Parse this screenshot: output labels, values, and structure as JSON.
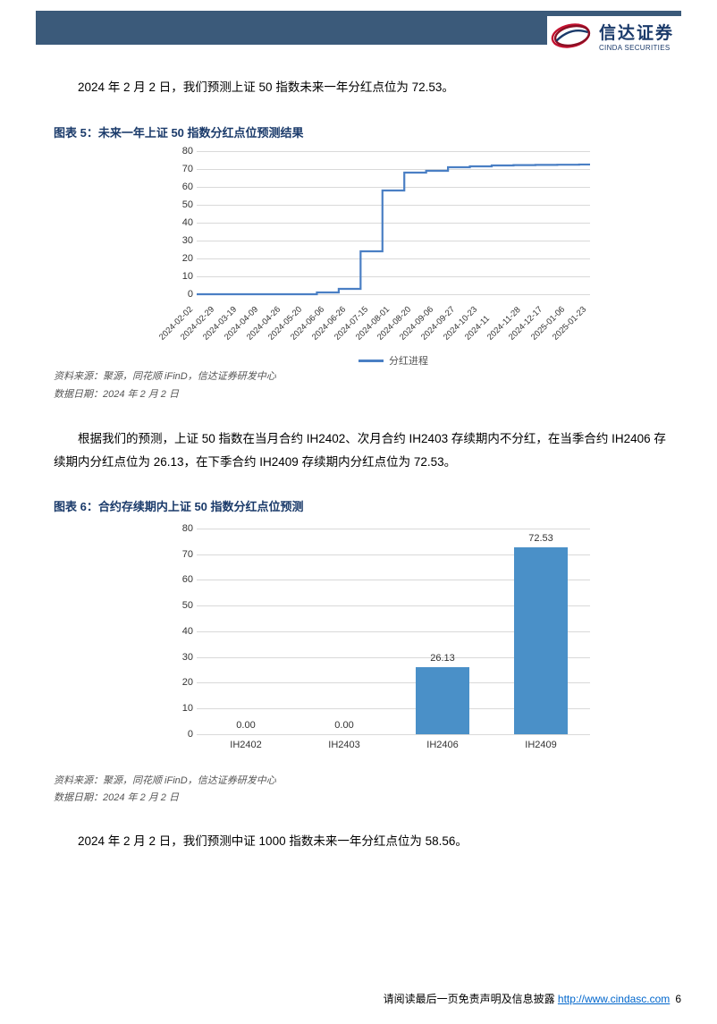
{
  "header": {
    "bar_color": "#3b5a7a",
    "logo_cn": "信达证券",
    "logo_en": "CINDA SECURITIES",
    "logo_swirl_colors": [
      "#c41230",
      "#8a0f24",
      "#1a3a6a"
    ]
  },
  "intro": "2024 年 2 月 2 日，我们预测上证 50 指数未来一年分红点位为 72.53。",
  "chart5": {
    "title": "图表 5：未来一年上证 50 指数分红点位预测结果",
    "title_color": "#1a3a6a",
    "type": "line",
    "line_color": "#4a7fc4",
    "legend_label": "分红进程",
    "ylim": [
      0,
      80
    ],
    "ytick_step": 10,
    "x_labels": [
      "2024-02-02",
      "2024-02-29",
      "2024-03-19",
      "2024-04-09",
      "2024-04-26",
      "2024-05-20",
      "2024-06-06",
      "2024-06-26",
      "2024-07-15",
      "2024-08-01",
      "2024-08-20",
      "2024-09-06",
      "2024-09-27",
      "2024-10-23",
      "2024-11",
      "2024-11-28",
      "2024-12-17",
      "2025-01-06",
      "2025-01-23"
    ],
    "values": [
      0,
      0,
      0,
      0,
      0,
      0,
      1,
      3,
      24,
      58,
      68,
      69,
      71,
      71.5,
      72,
      72.2,
      72.3,
      72.4,
      72.53
    ],
    "grid_color": "#d9d9d9",
    "source": "资料来源：聚源，同花顺 iFinD，信达证券研发中心",
    "date_note": "数据日期：2024 年 2 月 2 日"
  },
  "mid_text": "根据我们的预测，上证 50 指数在当月合约 IH2402、次月合约 IH2403 存续期内不分红，在当季合约 IH2406 存续期内分红点位为 26.13，在下季合约 IH2409 存续期内分红点位为 72.53。",
  "chart6": {
    "title": "图表 6：合约存续期内上证 50 指数分红点位预测",
    "title_color": "#1a3a6a",
    "type": "bar",
    "bar_color": "#4a90c8",
    "ylim": [
      0,
      80
    ],
    "ytick_step": 10,
    "categories": [
      "IH2402",
      "IH2403",
      "IH2406",
      "IH2409"
    ],
    "values": [
      0.0,
      0.0,
      26.13,
      72.53
    ],
    "value_labels": [
      "0.00",
      "0.00",
      "26.13",
      "72.53"
    ],
    "grid_color": "#d9d9d9",
    "source": "资料来源：聚源，同花顺 iFinD，信达证券研发中心",
    "date_note": "数据日期：2024 年 2 月 2 日"
  },
  "bottom_text": "2024 年 2 月 2 日，我们预测中证 1000 指数未来一年分红点位为 58.56。",
  "footer": {
    "prefix": "请阅读最后一页免责声明及信息披露 ",
    "url": "http://www.cindasc.com",
    "page": "6"
  }
}
